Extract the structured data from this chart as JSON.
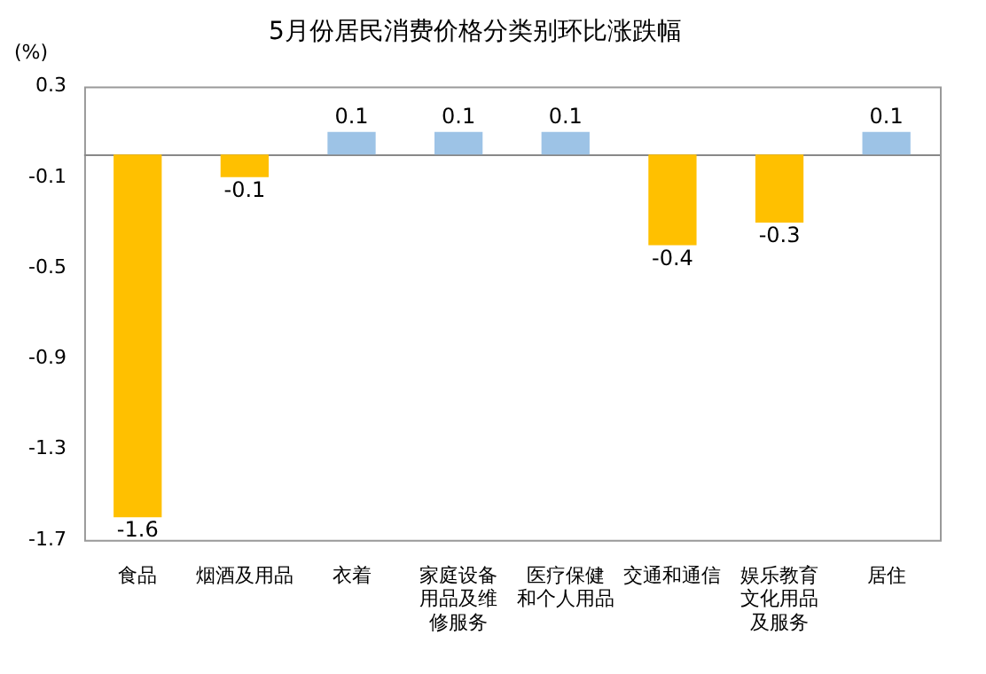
{
  "chart_data": {
    "type": "bar",
    "title": "5月份居民消费价格分类别环比涨跌幅",
    "ylabel": "(%)",
    "categories": [
      "食品",
      "烟酒及用品",
      "衣着",
      "家庭设备用品及维修服务",
      "医疗保健和个人用品",
      "交通和通信",
      "娱乐教育文化用品及服务",
      "居住"
    ],
    "values": [
      -1.6,
      -0.1,
      0.1,
      0.1,
      0.1,
      -0.4,
      -0.3,
      0.1
    ],
    "colors": [
      "#ffc000",
      "#ffc000",
      "#9dc3e6",
      "#9dc3e6",
      "#9dc3e6",
      "#ffc000",
      "#ffc000",
      "#9dc3e6"
    ],
    "ylim": [
      -1.7,
      0.3
    ],
    "yticks": [
      -1.7,
      -1.3,
      -0.9,
      -0.5,
      -0.1,
      0.3
    ],
    "grid": false,
    "data_labels": true,
    "legend": false
  }
}
